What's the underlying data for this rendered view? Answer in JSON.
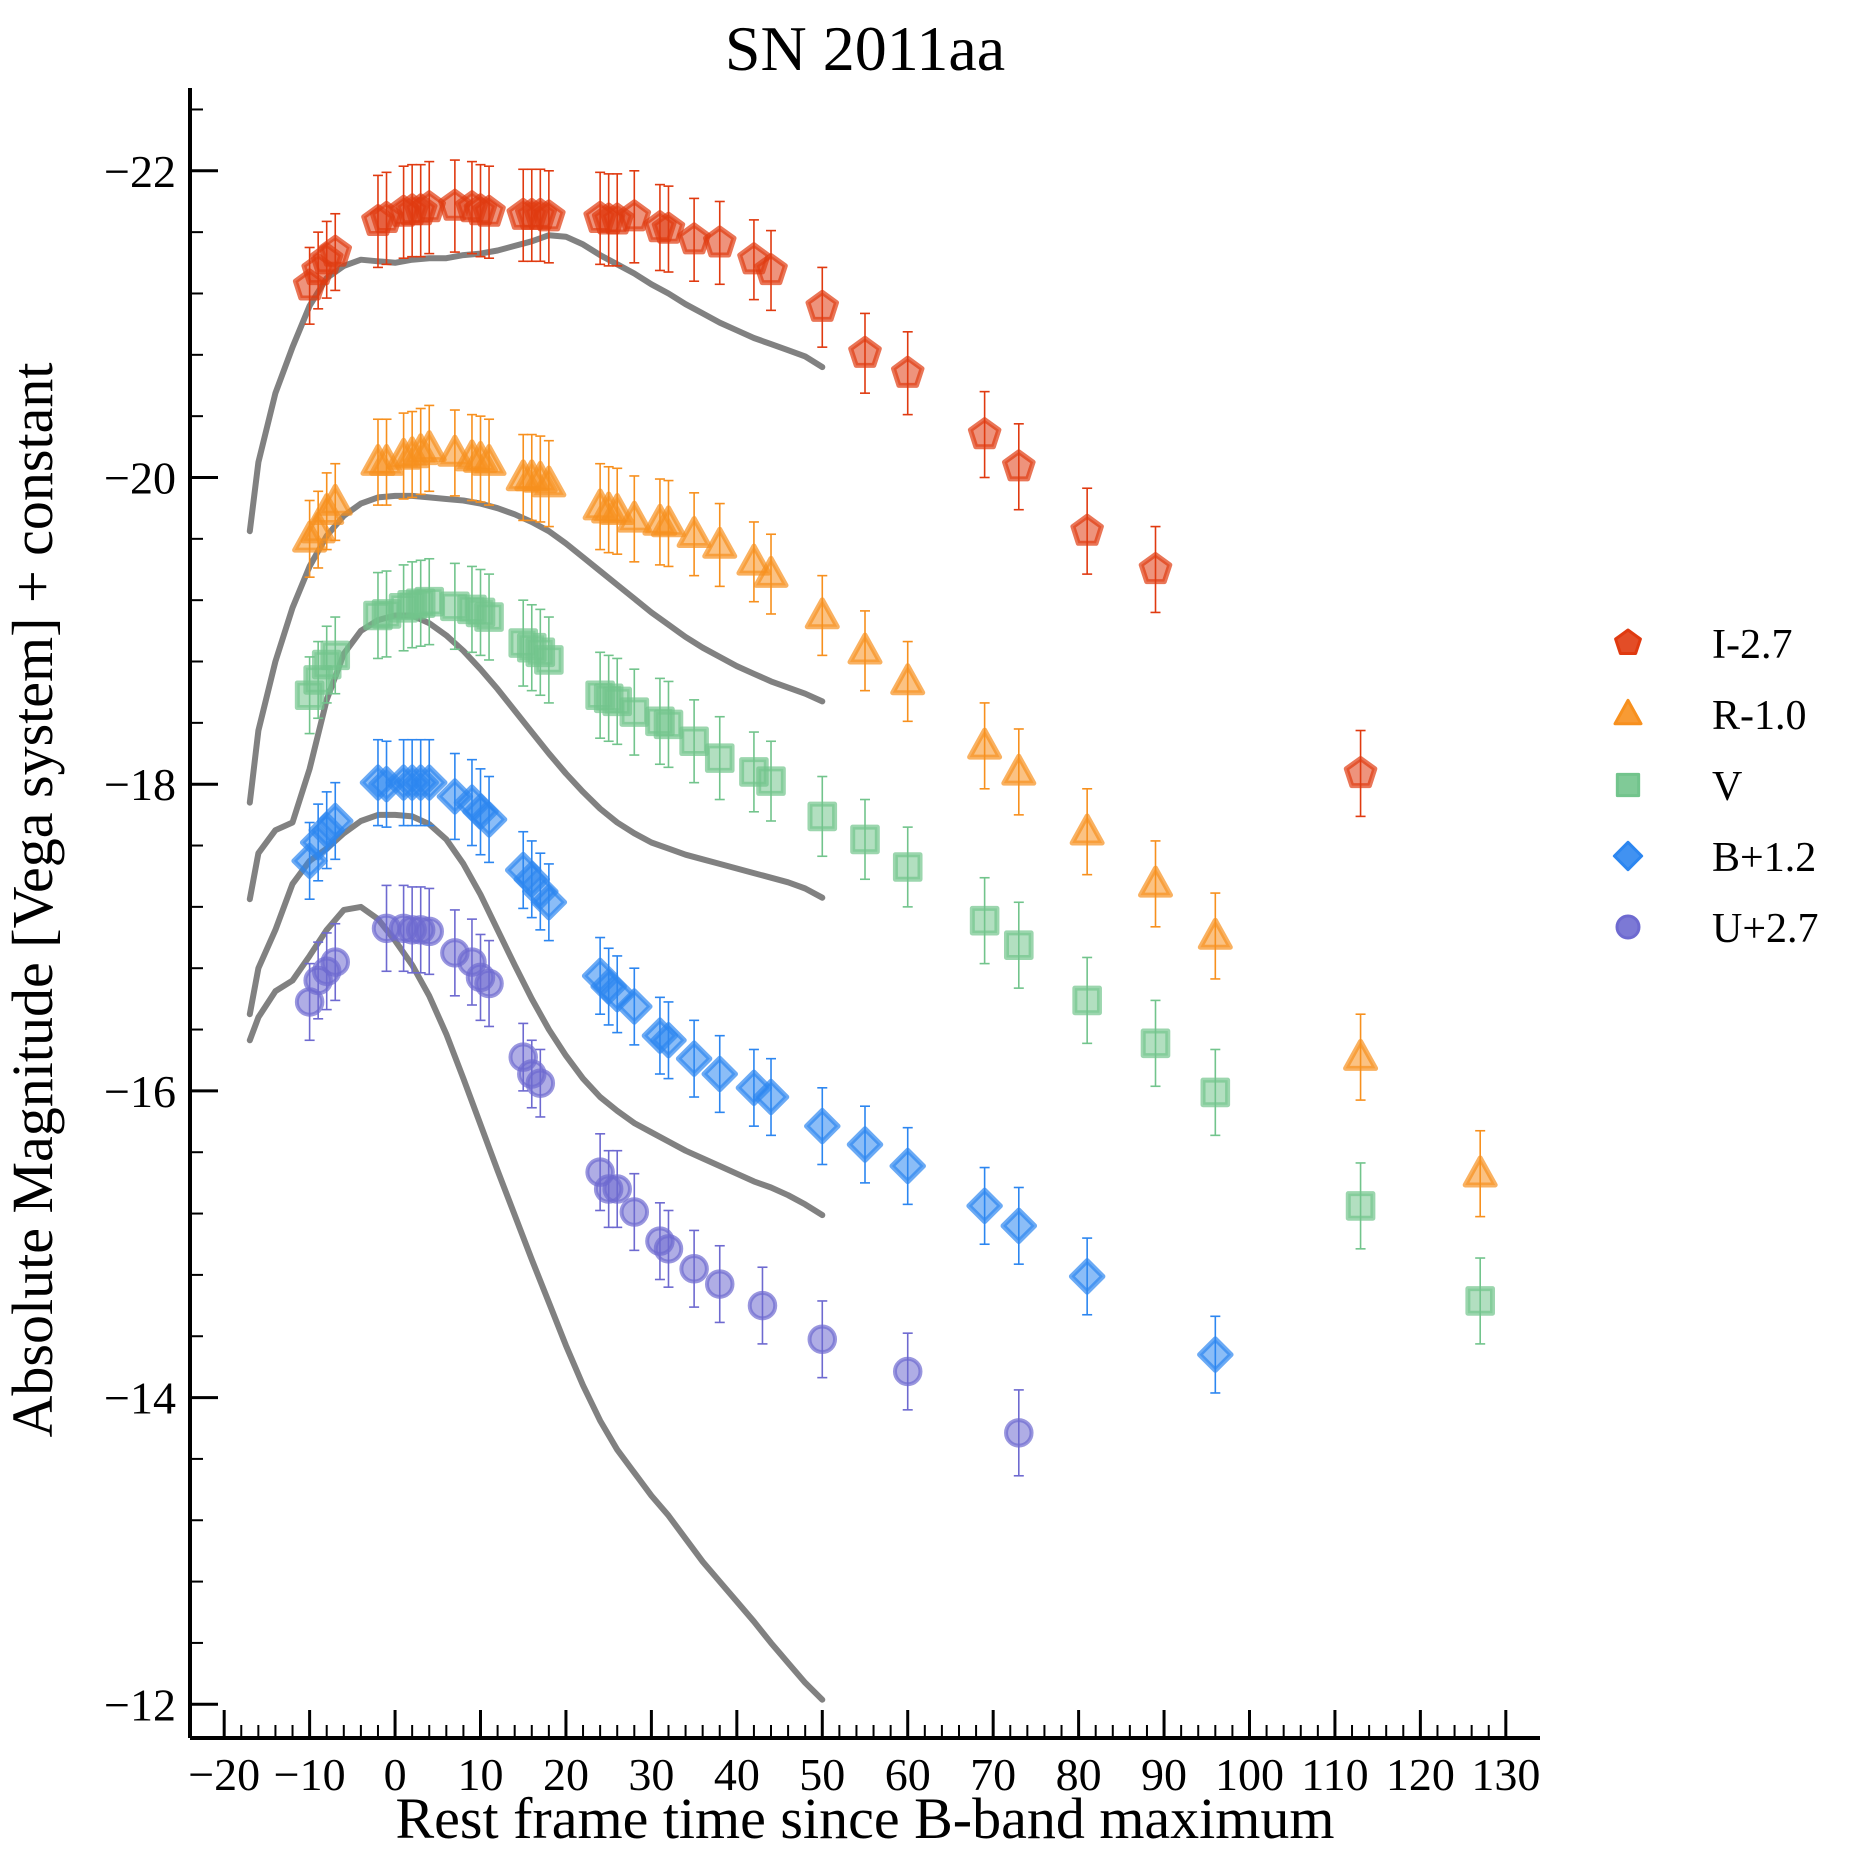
{
  "chart_data": {
    "type": "scatter",
    "title": "SN 2011aa",
    "xlabel": "Rest frame time since B-band maximum",
    "ylabel": "Absolute Magnitude [Vega system] + constant",
    "xlim": [
      -24,
      134
    ],
    "ylim": [
      -22.54,
      -11.78
    ],
    "y_inverted": true,
    "x_ticks": [
      -20,
      -10,
      0,
      10,
      20,
      30,
      40,
      50,
      60,
      70,
      80,
      90,
      100,
      110,
      120,
      130
    ],
    "x_tick_labels": [
      "−20",
      "−10",
      "0",
      "10",
      "20",
      "30",
      "40",
      "50",
      "60",
      "70",
      "80",
      "90",
      "100",
      "110",
      "120",
      "130"
    ],
    "y_ticks": [
      -22,
      -20,
      -18,
      -16,
      -14,
      -12
    ],
    "y_tick_labels": [
      "−22",
      "−20",
      "−18",
      "−16",
      "−14",
      "−12"
    ],
    "grid": false,
    "legend_position": "right",
    "series": [
      {
        "name": "I-2.7",
        "marker": "pentagon",
        "color": "#e03a10",
        "x": [
          -10,
          -9,
          -8,
          -7,
          -2,
          -1,
          1,
          2,
          3,
          4,
          7,
          9,
          10,
          11,
          15,
          16,
          17,
          18,
          24,
          25,
          26,
          28,
          31,
          32,
          35,
          38,
          42,
          44,
          50,
          55,
          60,
          69,
          73,
          81,
          89,
          113
        ],
        "y": [
          -21.25,
          -21.35,
          -21.42,
          -21.47,
          -21.67,
          -21.69,
          -21.73,
          -21.74,
          -21.74,
          -21.76,
          -21.77,
          -21.76,
          -21.74,
          -21.73,
          -21.71,
          -21.71,
          -21.71,
          -21.7,
          -21.69,
          -21.68,
          -21.68,
          -21.7,
          -21.63,
          -21.62,
          -21.55,
          -21.53,
          -21.42,
          -21.35,
          -21.11,
          -20.81,
          -20.68,
          -20.28,
          -20.07,
          -19.65,
          -19.4,
          -18.07
        ],
        "err": [
          0.25,
          0.25,
          0.25,
          0.25,
          0.3,
          0.3,
          0.3,
          0.3,
          0.3,
          0.3,
          0.3,
          0.3,
          0.3,
          0.3,
          0.3,
          0.3,
          0.3,
          0.3,
          0.3,
          0.3,
          0.3,
          0.3,
          0.28,
          0.28,
          0.27,
          0.27,
          0.26,
          0.26,
          0.26,
          0.26,
          0.27,
          0.28,
          0.28,
          0.28,
          0.28,
          0.28
        ]
      },
      {
        "name": "R-1.0",
        "marker": "triangle",
        "color": "#f7901e",
        "x": [
          -10,
          -9,
          -8,
          -7,
          -2,
          -1,
          1,
          2,
          3,
          4,
          7,
          9,
          10,
          11,
          15,
          16,
          17,
          18,
          24,
          25,
          26,
          28,
          31,
          32,
          35,
          38,
          42,
          44,
          50,
          55,
          60,
          69,
          73,
          81,
          89,
          96,
          113,
          127
        ],
        "y": [
          -19.6,
          -19.66,
          -19.78,
          -19.84,
          -20.1,
          -20.1,
          -20.14,
          -20.15,
          -20.17,
          -20.19,
          -20.16,
          -20.13,
          -20.12,
          -20.1,
          -20.0,
          -20.0,
          -19.99,
          -19.96,
          -19.81,
          -19.79,
          -19.78,
          -19.73,
          -19.71,
          -19.7,
          -19.63,
          -19.56,
          -19.45,
          -19.37,
          -19.1,
          -18.87,
          -18.67,
          -18.25,
          -18.08,
          -17.69,
          -17.35,
          -17.01,
          -16.22,
          -15.46
        ],
        "err": [
          0.25,
          0.25,
          0.25,
          0.25,
          0.28,
          0.28,
          0.28,
          0.28,
          0.28,
          0.28,
          0.28,
          0.28,
          0.28,
          0.28,
          0.28,
          0.28,
          0.28,
          0.28,
          0.28,
          0.28,
          0.28,
          0.28,
          0.28,
          0.28,
          0.27,
          0.27,
          0.26,
          0.26,
          0.26,
          0.26,
          0.26,
          0.28,
          0.28,
          0.28,
          0.28,
          0.28,
          0.28,
          0.28
        ]
      },
      {
        "name": "V",
        "marker": "square",
        "color": "#72c48c",
        "x": [
          -10,
          -9,
          -8,
          -7,
          -2,
          -1,
          1,
          2,
          3,
          4,
          7,
          9,
          10,
          11,
          15,
          16,
          17,
          18,
          24,
          25,
          26,
          28,
          31,
          32,
          35,
          38,
          42,
          44,
          50,
          55,
          60,
          69,
          73,
          81,
          89,
          96,
          113,
          127
        ],
        "y": [
          -18.58,
          -18.68,
          -18.78,
          -18.84,
          -19.1,
          -19.11,
          -19.15,
          -19.17,
          -19.18,
          -19.19,
          -19.16,
          -19.14,
          -19.12,
          -19.09,
          -18.92,
          -18.89,
          -18.86,
          -18.81,
          -18.58,
          -18.56,
          -18.54,
          -18.47,
          -18.41,
          -18.39,
          -18.28,
          -18.17,
          -18.08,
          -18.02,
          -17.79,
          -17.64,
          -17.46,
          -17.11,
          -16.95,
          -16.59,
          -16.31,
          -15.99,
          -15.25,
          -14.63
        ],
        "err": [
          0.25,
          0.25,
          0.25,
          0.25,
          0.28,
          0.28,
          0.28,
          0.28,
          0.28,
          0.28,
          0.28,
          0.28,
          0.28,
          0.28,
          0.28,
          0.28,
          0.28,
          0.28,
          0.28,
          0.28,
          0.28,
          0.28,
          0.28,
          0.28,
          0.27,
          0.27,
          0.26,
          0.26,
          0.26,
          0.26,
          0.26,
          0.28,
          0.28,
          0.28,
          0.28,
          0.28,
          0.28,
          0.28
        ]
      },
      {
        "name": "B+1.2",
        "marker": "diamond",
        "color": "#2c86f0",
        "x": [
          -10,
          -9,
          -8,
          -7,
          -2,
          -1,
          1,
          2,
          3,
          4,
          7,
          9,
          10,
          11,
          15,
          16,
          17,
          18,
          24,
          25,
          26,
          28,
          31,
          32,
          35,
          38,
          42,
          44,
          50,
          55,
          60,
          69,
          73,
          81,
          96
        ],
        "y": [
          -17.5,
          -17.62,
          -17.7,
          -17.76,
          -18.01,
          -18.0,
          -18.01,
          -18.01,
          -18.01,
          -18.01,
          -17.92,
          -17.88,
          -17.82,
          -17.77,
          -17.44,
          -17.38,
          -17.3,
          -17.23,
          -16.75,
          -16.68,
          -16.63,
          -16.55,
          -16.36,
          -16.33,
          -16.21,
          -16.11,
          -16.02,
          -15.96,
          -15.77,
          -15.65,
          -15.51,
          -15.25,
          -15.12,
          -14.79,
          -14.28
        ],
        "err": [
          0.25,
          0.25,
          0.25,
          0.25,
          0.28,
          0.28,
          0.28,
          0.28,
          0.28,
          0.28,
          0.28,
          0.28,
          0.28,
          0.28,
          0.25,
          0.25,
          0.25,
          0.25,
          0.25,
          0.25,
          0.25,
          0.25,
          0.25,
          0.25,
          0.25,
          0.25,
          0.25,
          0.25,
          0.25,
          0.25,
          0.25,
          0.25,
          0.25,
          0.25,
          0.25
        ]
      },
      {
        "name": "U+2.7",
        "marker": "circle",
        "color": "#6e6ad0",
        "x": [
          -10,
          -9,
          -8,
          -7,
          -1,
          1,
          2,
          3,
          4,
          7,
          9,
          10,
          11,
          15,
          16,
          17,
          24,
          25,
          26,
          28,
          31,
          32,
          35,
          38,
          43,
          50,
          60,
          73
        ],
        "y": [
          -16.58,
          -16.72,
          -16.78,
          -16.84,
          -17.06,
          -17.06,
          -17.05,
          -17.05,
          -17.04,
          -16.9,
          -16.84,
          -16.74,
          -16.7,
          -16.22,
          -16.11,
          -16.05,
          -15.47,
          -15.36,
          -15.36,
          -15.21,
          -15.02,
          -14.97,
          -14.84,
          -14.74,
          -14.6,
          -14.38,
          -14.17,
          -13.77
        ],
        "err": [
          0.25,
          0.25,
          0.25,
          0.25,
          0.28,
          0.28,
          0.28,
          0.28,
          0.28,
          0.28,
          0.28,
          0.28,
          0.28,
          0.22,
          0.22,
          0.22,
          0.25,
          0.25,
          0.25,
          0.25,
          0.25,
          0.25,
          0.25,
          0.25,
          0.25,
          0.25,
          0.25,
          0.28
        ]
      }
    ],
    "model_curves": [
      {
        "color": "#7a7a7a",
        "x": [
          -17,
          -16,
          -14,
          -12,
          -10,
          -8,
          -6,
          -4,
          -2,
          0,
          2,
          4,
          6,
          8,
          10,
          12,
          14,
          16,
          18,
          20,
          22,
          24,
          26,
          28,
          30,
          32,
          34,
          36,
          38,
          40,
          42,
          44,
          46,
          48,
          50
        ],
        "y": [
          -19.65,
          -20.1,
          -20.55,
          -20.85,
          -21.12,
          -21.3,
          -21.38,
          -21.42,
          -21.41,
          -21.4,
          -21.42,
          -21.43,
          -21.43,
          -21.45,
          -21.46,
          -21.48,
          -21.51,
          -21.54,
          -21.58,
          -21.57,
          -21.52,
          -21.45,
          -21.39,
          -21.33,
          -21.26,
          -21.2,
          -21.13,
          -21.07,
          -21.01,
          -20.96,
          -20.91,
          -20.87,
          -20.83,
          -20.79,
          -20.72
        ]
      },
      {
        "color": "#7a7a7a",
        "x": [
          -17,
          -16,
          -14,
          -12,
          -10,
          -8,
          -6,
          -4,
          -2,
          0,
          2,
          4,
          6,
          8,
          10,
          12,
          14,
          16,
          18,
          20,
          22,
          24,
          26,
          28,
          30,
          32,
          34,
          36,
          38,
          40,
          42,
          44,
          46,
          48,
          50
        ],
        "y": [
          -17.88,
          -18.35,
          -18.8,
          -19.15,
          -19.42,
          -19.62,
          -19.75,
          -19.83,
          -19.87,
          -19.88,
          -19.88,
          -19.87,
          -19.86,
          -19.85,
          -19.83,
          -19.8,
          -19.76,
          -19.71,
          -19.65,
          -19.57,
          -19.48,
          -19.39,
          -19.3,
          -19.21,
          -19.12,
          -19.04,
          -18.96,
          -18.89,
          -18.83,
          -18.77,
          -18.72,
          -18.67,
          -18.63,
          -18.59,
          -18.54
        ]
      },
      {
        "color": "#7a7a7a",
        "x": [
          -17,
          -16,
          -14,
          -12,
          -10,
          -8,
          -6,
          -4,
          -2,
          0,
          2,
          4,
          6,
          8,
          10,
          12,
          14,
          16,
          18,
          20,
          22,
          24,
          26,
          28,
          30,
          32,
          34,
          36,
          38,
          40,
          42,
          44,
          46,
          48,
          50
        ],
        "y": [
          -17.25,
          -17.55,
          -17.7,
          -17.75,
          -18.1,
          -18.55,
          -18.85,
          -19.0,
          -19.07,
          -19.1,
          -19.1,
          -19.05,
          -18.97,
          -18.87,
          -18.75,
          -18.62,
          -18.48,
          -18.34,
          -18.2,
          -18.07,
          -17.95,
          -17.84,
          -17.75,
          -17.68,
          -17.62,
          -17.58,
          -17.54,
          -17.51,
          -17.48,
          -17.45,
          -17.42,
          -17.39,
          -17.36,
          -17.32,
          -17.26
        ]
      },
      {
        "color": "#7a7a7a",
        "x": [
          -17,
          -16,
          -14,
          -12,
          -10,
          -8,
          -6,
          -4,
          -2,
          0,
          2,
          4,
          6,
          8,
          10,
          12,
          14,
          16,
          18,
          20,
          22,
          24,
          26,
          28,
          30,
          32,
          34,
          36,
          38,
          40,
          42,
          44,
          46,
          48,
          50
        ],
        "y": [
          -16.5,
          -16.8,
          -17.05,
          -17.35,
          -17.5,
          -17.58,
          -17.68,
          -17.76,
          -17.8,
          -17.8,
          -17.79,
          -17.74,
          -17.64,
          -17.48,
          -17.28,
          -17.05,
          -16.82,
          -16.6,
          -16.4,
          -16.23,
          -16.08,
          -15.96,
          -15.87,
          -15.79,
          -15.73,
          -15.67,
          -15.61,
          -15.56,
          -15.51,
          -15.46,
          -15.41,
          -15.37,
          -15.32,
          -15.26,
          -15.19
        ]
      },
      {
        "color": "#7a7a7a",
        "x": [
          -17,
          -16,
          -14,
          -12,
          -10,
          -8,
          -6,
          -4,
          -2,
          0,
          2,
          4,
          6,
          8,
          10,
          12,
          14,
          16,
          18,
          20,
          22,
          24,
          26,
          28,
          30,
          32,
          34,
          36,
          38,
          40,
          42,
          44,
          46,
          48,
          50
        ],
        "y": [
          -16.33,
          -16.48,
          -16.65,
          -16.72,
          -16.88,
          -17.05,
          -17.18,
          -17.2,
          -17.12,
          -16.98,
          -16.82,
          -16.62,
          -16.37,
          -16.08,
          -15.78,
          -15.48,
          -15.19,
          -14.9,
          -14.62,
          -14.34,
          -14.08,
          -13.85,
          -13.66,
          -13.51,
          -13.36,
          -13.23,
          -13.08,
          -12.93,
          -12.8,
          -12.67,
          -12.54,
          -12.4,
          -12.27,
          -12.14,
          -12.03
        ]
      }
    ]
  }
}
